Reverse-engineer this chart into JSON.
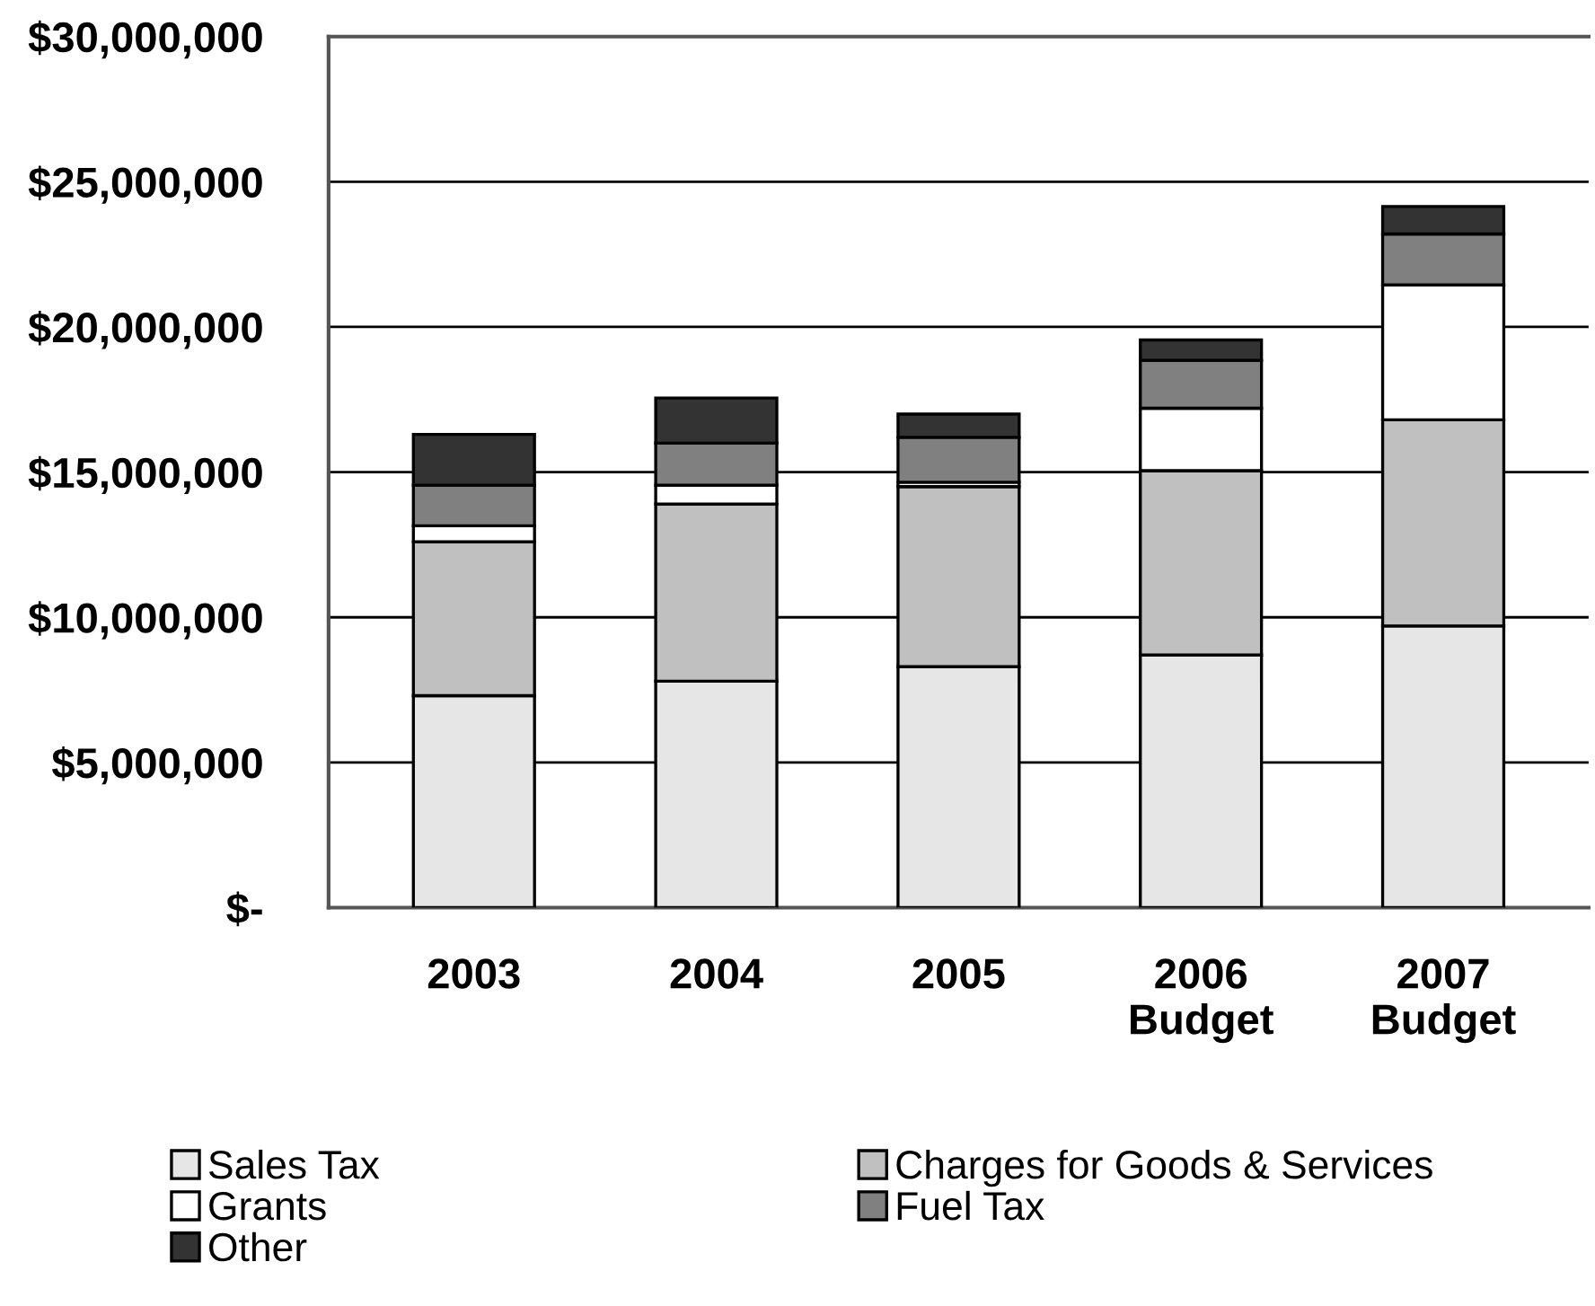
{
  "chart_data": {
    "type": "bar",
    "stacked": true,
    "categories": [
      "2003",
      "2004",
      "2005",
      "2006\nBudget",
      "2007\nBudget"
    ],
    "series": [
      {
        "name": "Sales Tax",
        "color": "#e6e6e6",
        "values": [
          7300000,
          7800000,
          8300000,
          8700000,
          9700000
        ]
      },
      {
        "name": "Charges for Goods & Services",
        "color": "#c0c0c0",
        "values": [
          5300000,
          6100000,
          6200000,
          6350000,
          7100000
        ]
      },
      {
        "name": "Grants",
        "color": "#ffffff",
        "values": [
          550000,
          650000,
          150000,
          2150000,
          4650000
        ]
      },
      {
        "name": "Fuel Tax",
        "color": "#808080",
        "values": [
          1400000,
          1450000,
          1550000,
          1650000,
          1750000
        ]
      },
      {
        "name": "Other",
        "color": "#333333",
        "values": [
          1750000,
          1550000,
          800000,
          700000,
          950000
        ]
      }
    ],
    "ylim": [
      0,
      30000000
    ],
    "yticks": [
      {
        "value": 0,
        "label": "$-"
      },
      {
        "value": 5000000,
        "label": "$5,000,000"
      },
      {
        "value": 10000000,
        "label": "$10,000,000"
      },
      {
        "value": 15000000,
        "label": "$15,000,000"
      },
      {
        "value": 20000000,
        "label": "$20,000,000"
      },
      {
        "value": 25000000,
        "label": "$25,000,000"
      },
      {
        "value": 30000000,
        "label": "$30,000,000"
      }
    ],
    "grid": "y",
    "legend": "bottom"
  }
}
